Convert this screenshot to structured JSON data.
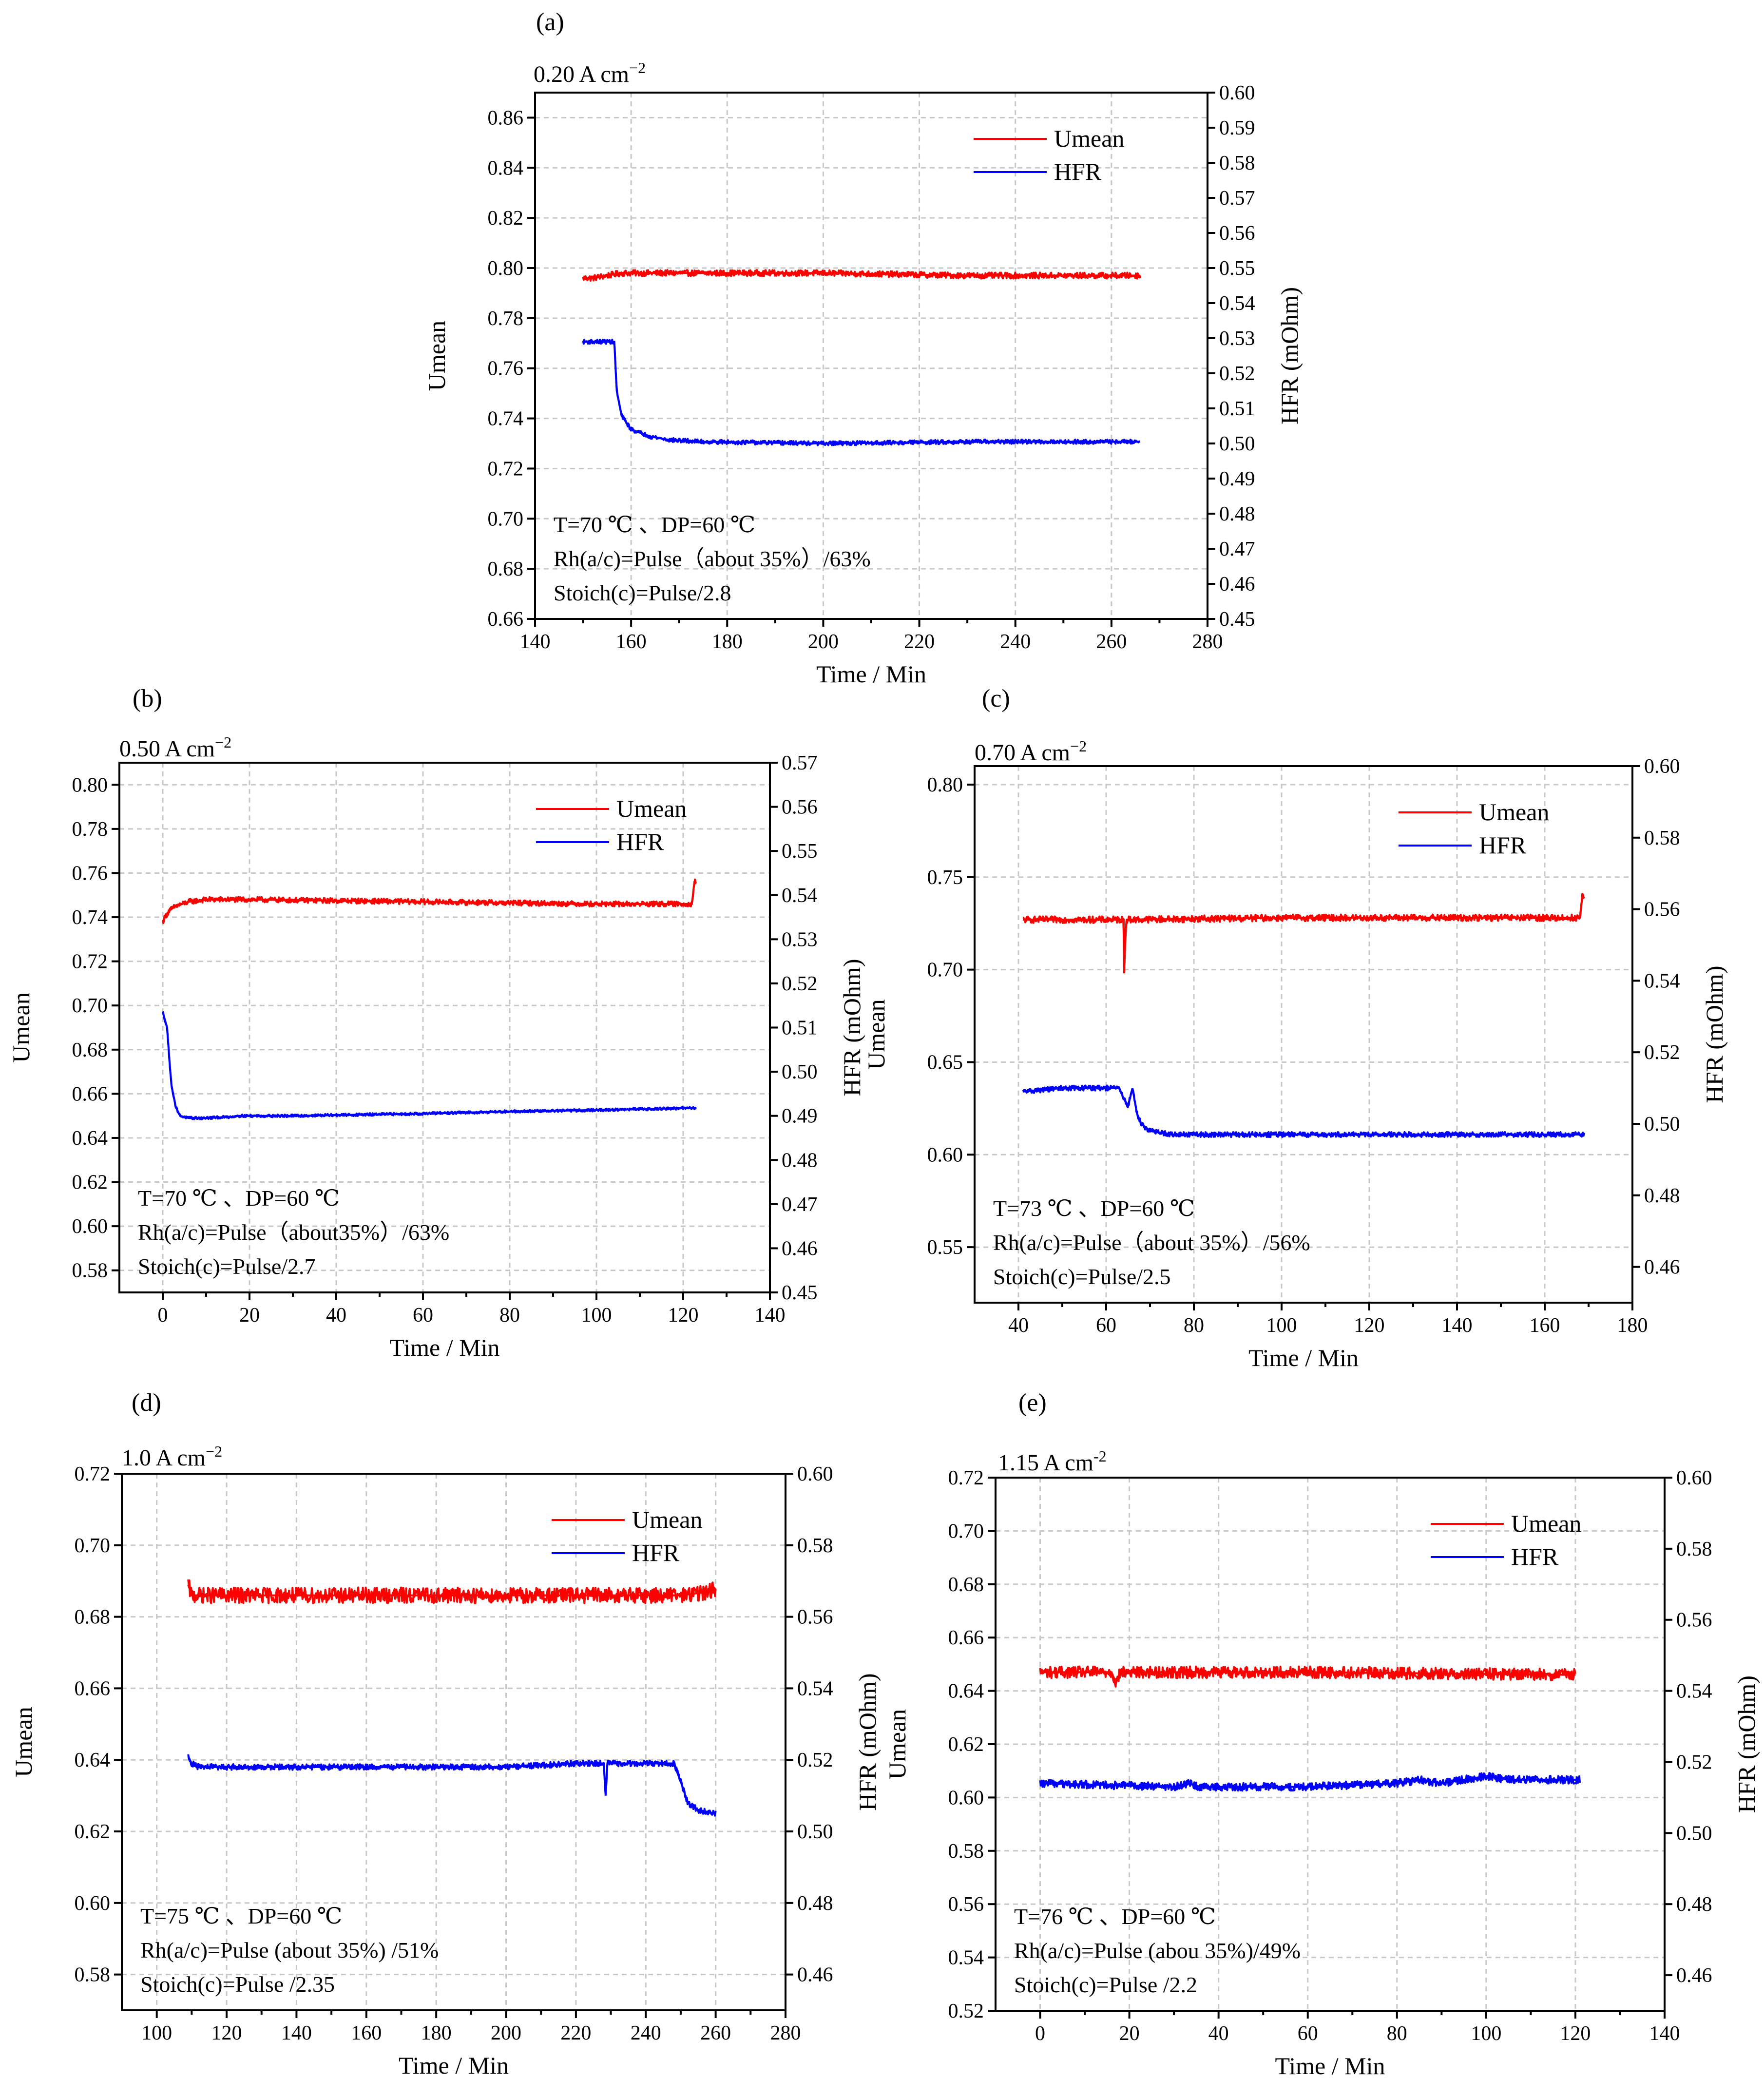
{
  "chart_data": [
    {
      "type": "line",
      "panel_label": "(a)",
      "title": "0.20 A cm",
      "title_sup": "−2",
      "xlabel": "Time / Min",
      "ylabel": "Umean",
      "y2label": "HFR (mOhm)",
      "xlim": [
        140,
        280
      ],
      "xticks": [
        140,
        160,
        180,
        200,
        220,
        240,
        260,
        280
      ],
      "ylim": [
        0.66,
        0.87
      ],
      "yticks": [
        "0.66",
        "0.68",
        "0.70",
        "0.72",
        "0.74",
        "0.76",
        "0.78",
        "0.80",
        "0.82",
        "0.84",
        "0.86"
      ],
      "y2lim": [
        0.45,
        0.6
      ],
      "y2ticks": [
        "0.45",
        "0.46",
        "0.47",
        "0.48",
        "0.49",
        "0.50",
        "0.51",
        "0.52",
        "0.53",
        "0.54",
        "0.55",
        "0.56",
        "0.57",
        "0.58",
        "0.59",
        "0.60"
      ],
      "grid": true,
      "legend_position": "top-right",
      "series": [
        {
          "name": "Umean",
          "axis": "left",
          "color": "#ff0000",
          "noise": 0.0012,
          "x": [
            150,
            152,
            155,
            158,
            160,
            170,
            200,
            230,
            266
          ],
          "y": [
            0.796,
            0.796,
            0.797,
            0.798,
            0.798,
            0.798,
            0.798,
            0.797,
            0.797
          ]
        },
        {
          "name": "HFR",
          "axis": "right",
          "color": "#0000ff",
          "noise": 0.0006,
          "x": [
            150,
            155,
            156.5,
            157,
            158,
            160,
            164,
            168,
            175,
            200,
            230,
            266
          ],
          "y": [
            0.529,
            0.529,
            0.529,
            0.515,
            0.508,
            0.504,
            0.502,
            0.501,
            0.5005,
            0.5,
            0.5005,
            0.5005
          ]
        }
      ],
      "annotations": [
        "T=70 ℃ 、DP=60 ℃",
        "Rh(a/c)=Pulse（about 35%）/63%",
        "Stoich(c)=Pulse/2.8"
      ]
    },
    {
      "type": "line",
      "panel_label": "(b)",
      "title": "0.50 A cm",
      "title_sup": "−2",
      "xlabel": "Time / Min",
      "ylabel": "Umean",
      "y2label": "HFR (mOhm)",
      "xlim": [
        -10,
        140
      ],
      "xticks": [
        0,
        20,
        40,
        60,
        80,
        100,
        120,
        140
      ],
      "ylim": [
        0.57,
        0.81
      ],
      "yticks": [
        "0.58",
        "0.60",
        "0.62",
        "0.64",
        "0.66",
        "0.68",
        "0.70",
        "0.72",
        "0.74",
        "0.76",
        "0.78",
        "0.80"
      ],
      "y2lim": [
        0.45,
        0.57
      ],
      "y2ticks": [
        "0.45",
        "0.46",
        "0.47",
        "0.48",
        "0.49",
        "0.50",
        "0.51",
        "0.52",
        "0.53",
        "0.54",
        "0.55",
        "0.56",
        "0.57"
      ],
      "grid": true,
      "legend_position": "top-right",
      "series": [
        {
          "name": "Umean",
          "axis": "left",
          "color": "#ff0000",
          "noise": 0.0012,
          "x": [
            0,
            0.5,
            1.5,
            3,
            6,
            10,
            20,
            60,
            100,
            122,
            122.6,
            123
          ],
          "y": [
            0.738,
            0.74,
            0.743,
            0.745,
            0.747,
            0.748,
            0.748,
            0.747,
            0.746,
            0.746,
            0.756,
            0.756
          ]
        },
        {
          "name": "HFR",
          "axis": "right",
          "color": "#0000ff",
          "noise": 0.0003,
          "x": [
            0,
            1,
            1.5,
            2,
            3,
            4,
            6,
            10,
            16,
            17,
            30,
            60,
            80,
            100,
            123
          ],
          "y": [
            0.5135,
            0.51,
            0.503,
            0.497,
            0.492,
            0.49,
            0.4895,
            0.4895,
            0.4898,
            0.49,
            0.49,
            0.4905,
            0.491,
            0.4913,
            0.4918
          ]
        }
      ],
      "annotations": [
        "T=70 ℃ 、DP=60 ℃",
        "Rh(a/c)=Pulse（about35%）/63%",
        "Stoich(c)=Pulse/2.7"
      ]
    },
    {
      "type": "line",
      "panel_label": "(c)",
      "title": "0.70 A cm",
      "title_sup": "−2",
      "xlabel": "Time / Min",
      "ylabel": "Umean",
      "y2label": "HFR (mOhm)",
      "xlim": [
        30,
        180
      ],
      "xticks": [
        40,
        60,
        80,
        100,
        120,
        140,
        160,
        180
      ],
      "ylim": [
        0.52,
        0.81
      ],
      "yticks": [
        "0.55",
        "0.60",
        "0.65",
        "0.70",
        "0.75",
        "0.80"
      ],
      "y2lim": [
        0.45,
        0.6
      ],
      "y2ticks": [
        "0.46",
        "0.48",
        "0.50",
        "0.52",
        "0.54",
        "0.56",
        "0.58",
        "0.60"
      ],
      "grid": true,
      "legend_position": "top-right",
      "series": [
        {
          "name": "Umean",
          "axis": "left",
          "color": "#ff0000",
          "noise": 0.0018,
          "x": [
            41,
            64,
            64.1,
            64.4,
            64.7,
            100,
            168,
            168.6,
            169
          ],
          "y": [
            0.727,
            0.727,
            0.698,
            0.72,
            0.727,
            0.728,
            0.728,
            0.74,
            0.74
          ]
        },
        {
          "name": "HFR",
          "axis": "right",
          "color": "#0000ff",
          "noise": 0.0007,
          "x": [
            41,
            50,
            63,
            64,
            65,
            66,
            67,
            68,
            70,
            75,
            100,
            140,
            169
          ],
          "y": [
            0.509,
            0.51,
            0.51,
            0.507,
            0.505,
            0.51,
            0.503,
            0.5,
            0.498,
            0.497,
            0.497,
            0.497,
            0.497
          ]
        }
      ],
      "annotations": [
        "T=73 ℃ 、DP=60 ℃",
        "Rh(a/c)=Pulse（about 35%）/56%",
        "Stoich(c)=Pulse/2.5"
      ]
    },
    {
      "type": "line",
      "panel_label": "(d)",
      "title": "1.0 A cm",
      "title_sup": "−2",
      "xlabel": "Time / Min",
      "ylabel": "Umean",
      "y2label": "HFR (mOhm)",
      "xlim": [
        90,
        280
      ],
      "xticks": [
        100,
        120,
        140,
        160,
        180,
        200,
        220,
        240,
        260,
        280
      ],
      "ylim": [
        0.57,
        0.72
      ],
      "yticks": [
        "0.58",
        "0.60",
        "0.62",
        "0.64",
        "0.66",
        "0.68",
        "0.70",
        "0.72"
      ],
      "y2lim": [
        0.45,
        0.6
      ],
      "y2ticks": [
        "0.46",
        "0.48",
        "0.50",
        "0.52",
        "0.54",
        "0.56",
        "0.58",
        "0.60"
      ],
      "grid": true,
      "legend_position": "top-right",
      "series": [
        {
          "name": "Umean",
          "axis": "left",
          "color": "#ff0000",
          "noise": 0.0022,
          "x": [
            109,
            110,
            112,
            150,
            200,
            250,
            258,
            260
          ],
          "y": [
            0.689,
            0.686,
            0.686,
            0.686,
            0.686,
            0.686,
            0.687,
            0.688
          ]
        },
        {
          "name": "HFR",
          "axis": "right",
          "color": "#0000ff",
          "noise": 0.0008,
          "x": [
            109,
            110,
            112,
            150,
            200,
            220,
            228,
            228.5,
            229,
            235,
            248,
            250,
            252,
            255,
            260
          ],
          "y": [
            0.521,
            0.519,
            0.518,
            0.518,
            0.518,
            0.519,
            0.519,
            0.51,
            0.519,
            0.519,
            0.519,
            0.514,
            0.508,
            0.506,
            0.505
          ]
        }
      ],
      "annotations": [
        "T=75 ℃ 、DP=60 ℃",
        "Rh(a/c)=Pulse (about 35%) /51%",
        "Stoich(c)=Pulse /2.35"
      ]
    },
    {
      "type": "line",
      "panel_label": "(e)",
      "title": "1.15 A cm",
      "title_sup": "-2",
      "xlabel": "Time / Min",
      "ylabel": "Umean",
      "y2label": "HFR (mOhm)",
      "xlim": [
        -10,
        140
      ],
      "xticks": [
        0,
        20,
        40,
        60,
        80,
        100,
        120,
        140
      ],
      "ylim": [
        0.52,
        0.72
      ],
      "yticks": [
        "0.52",
        "0.54",
        "0.56",
        "0.58",
        "0.60",
        "0.62",
        "0.64",
        "0.66",
        "0.68",
        "0.70",
        "0.72"
      ],
      "y2lim": [
        0.45,
        0.6
      ],
      "y2ticks": [
        "0.46",
        "0.48",
        "0.50",
        "0.52",
        "0.54",
        "0.56",
        "0.58",
        "0.60"
      ],
      "grid": true,
      "legend_position": "top-right",
      "series": [
        {
          "name": "Umean",
          "axis": "left",
          "color": "#ff0000",
          "noise": 0.0022,
          "x": [
            0,
            16,
            17,
            18,
            60,
            120
          ],
          "y": [
            0.647,
            0.647,
            0.643,
            0.647,
            0.647,
            0.646
          ]
        },
        {
          "name": "HFR",
          "axis": "right",
          "color": "#0000ff",
          "noise": 0.0011,
          "x": [
            0,
            30,
            33,
            36,
            60,
            80,
            85,
            90,
            100,
            105,
            110,
            121
          ],
          "y": [
            0.514,
            0.513,
            0.514,
            0.513,
            0.513,
            0.514,
            0.515,
            0.514,
            0.516,
            0.515,
            0.515,
            0.515
          ]
        }
      ],
      "annotations": [
        "T=76 ℃ 、DP=60 ℃",
        "Rh(a/c)=Pulse (abou 35%)/49%",
        "Stoich(c)=Pulse /2.2"
      ]
    }
  ]
}
